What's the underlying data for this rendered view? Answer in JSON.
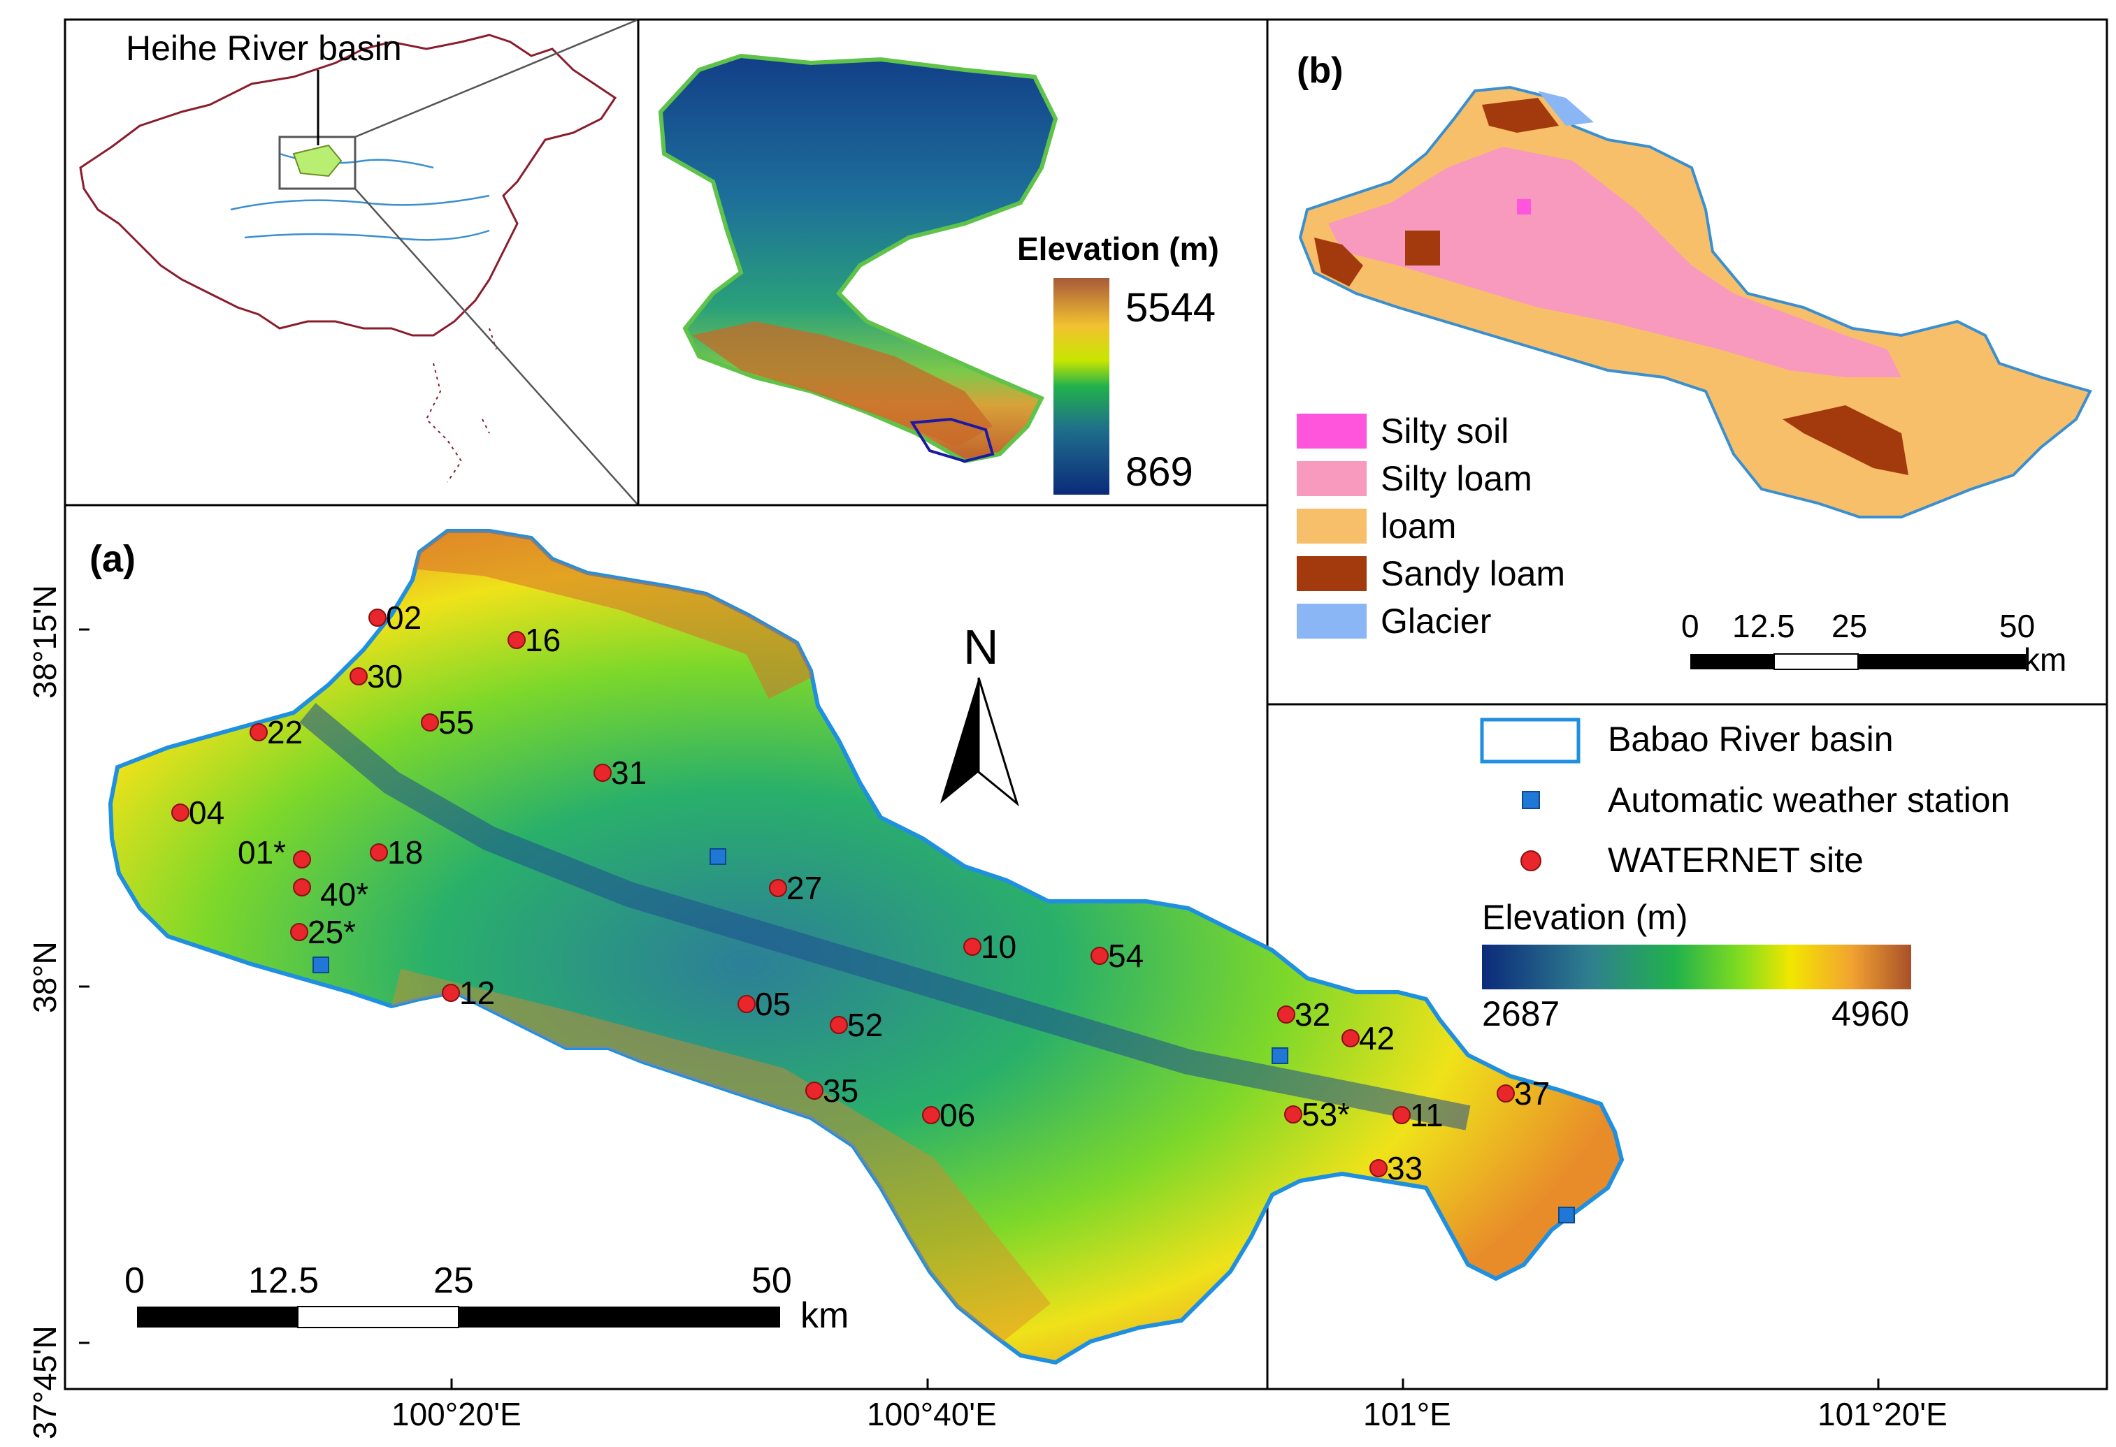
{
  "inset_china": {
    "label": "Heihe River basin"
  },
  "inset_dem": {
    "legend_title": "Elevation (m)",
    "legend_max": "5544",
    "legend_min": "869",
    "ramp_colors": [
      "#0b2a7a",
      "#1f6e8c",
      "#22b14c",
      "#c8e600",
      "#f2c230",
      "#e08a2a",
      "#a85a3a"
    ]
  },
  "panel_b": {
    "label": "(b)",
    "legend": [
      {
        "name": "Silty soil",
        "color": "#ff55dd"
      },
      {
        "name": "Silty loam",
        "color": "#f79abd"
      },
      {
        "name": "loam",
        "color": "#f8bf6a"
      },
      {
        "name": "Sandy loam",
        "color": "#a33a0e"
      },
      {
        "name": "Glacier",
        "color": "#8bb6f5"
      }
    ],
    "scale_labels": [
      "0",
      "12.5",
      "25",
      "50"
    ],
    "scale_unit": "km"
  },
  "panel_a": {
    "label": "(a)",
    "north": "N",
    "lat_labels": [
      "38°15'N",
      "38°N",
      "37°45'N"
    ],
    "lon_labels": [
      "100°20'E",
      "100°40'E",
      "101°E",
      "101°20'E"
    ],
    "scale_labels": [
      "0",
      "12.5",
      "25",
      "50"
    ],
    "scale_unit": "km",
    "sites": [
      "02",
      "16",
      "30",
      "55",
      "22",
      "31",
      "04",
      "18",
      "01*",
      "40*",
      "25*",
      "27",
      "10",
      "54",
      "12",
      "05",
      "52",
      "32",
      "42",
      "35",
      "06",
      "53*",
      "11",
      "37",
      "33"
    ],
    "legend": {
      "basin": "Babao River basin",
      "aws": "Automatic weather station",
      "site": "WATERNET site",
      "elev_title": "Elevation (m)",
      "elev_min": "2687",
      "elev_max": "4960"
    },
    "ramp_colors": [
      "#0b2a7a",
      "#2f7f8f",
      "#22b14c",
      "#7fdc1f",
      "#f2e600",
      "#f2a330",
      "#a8502a"
    ]
  }
}
